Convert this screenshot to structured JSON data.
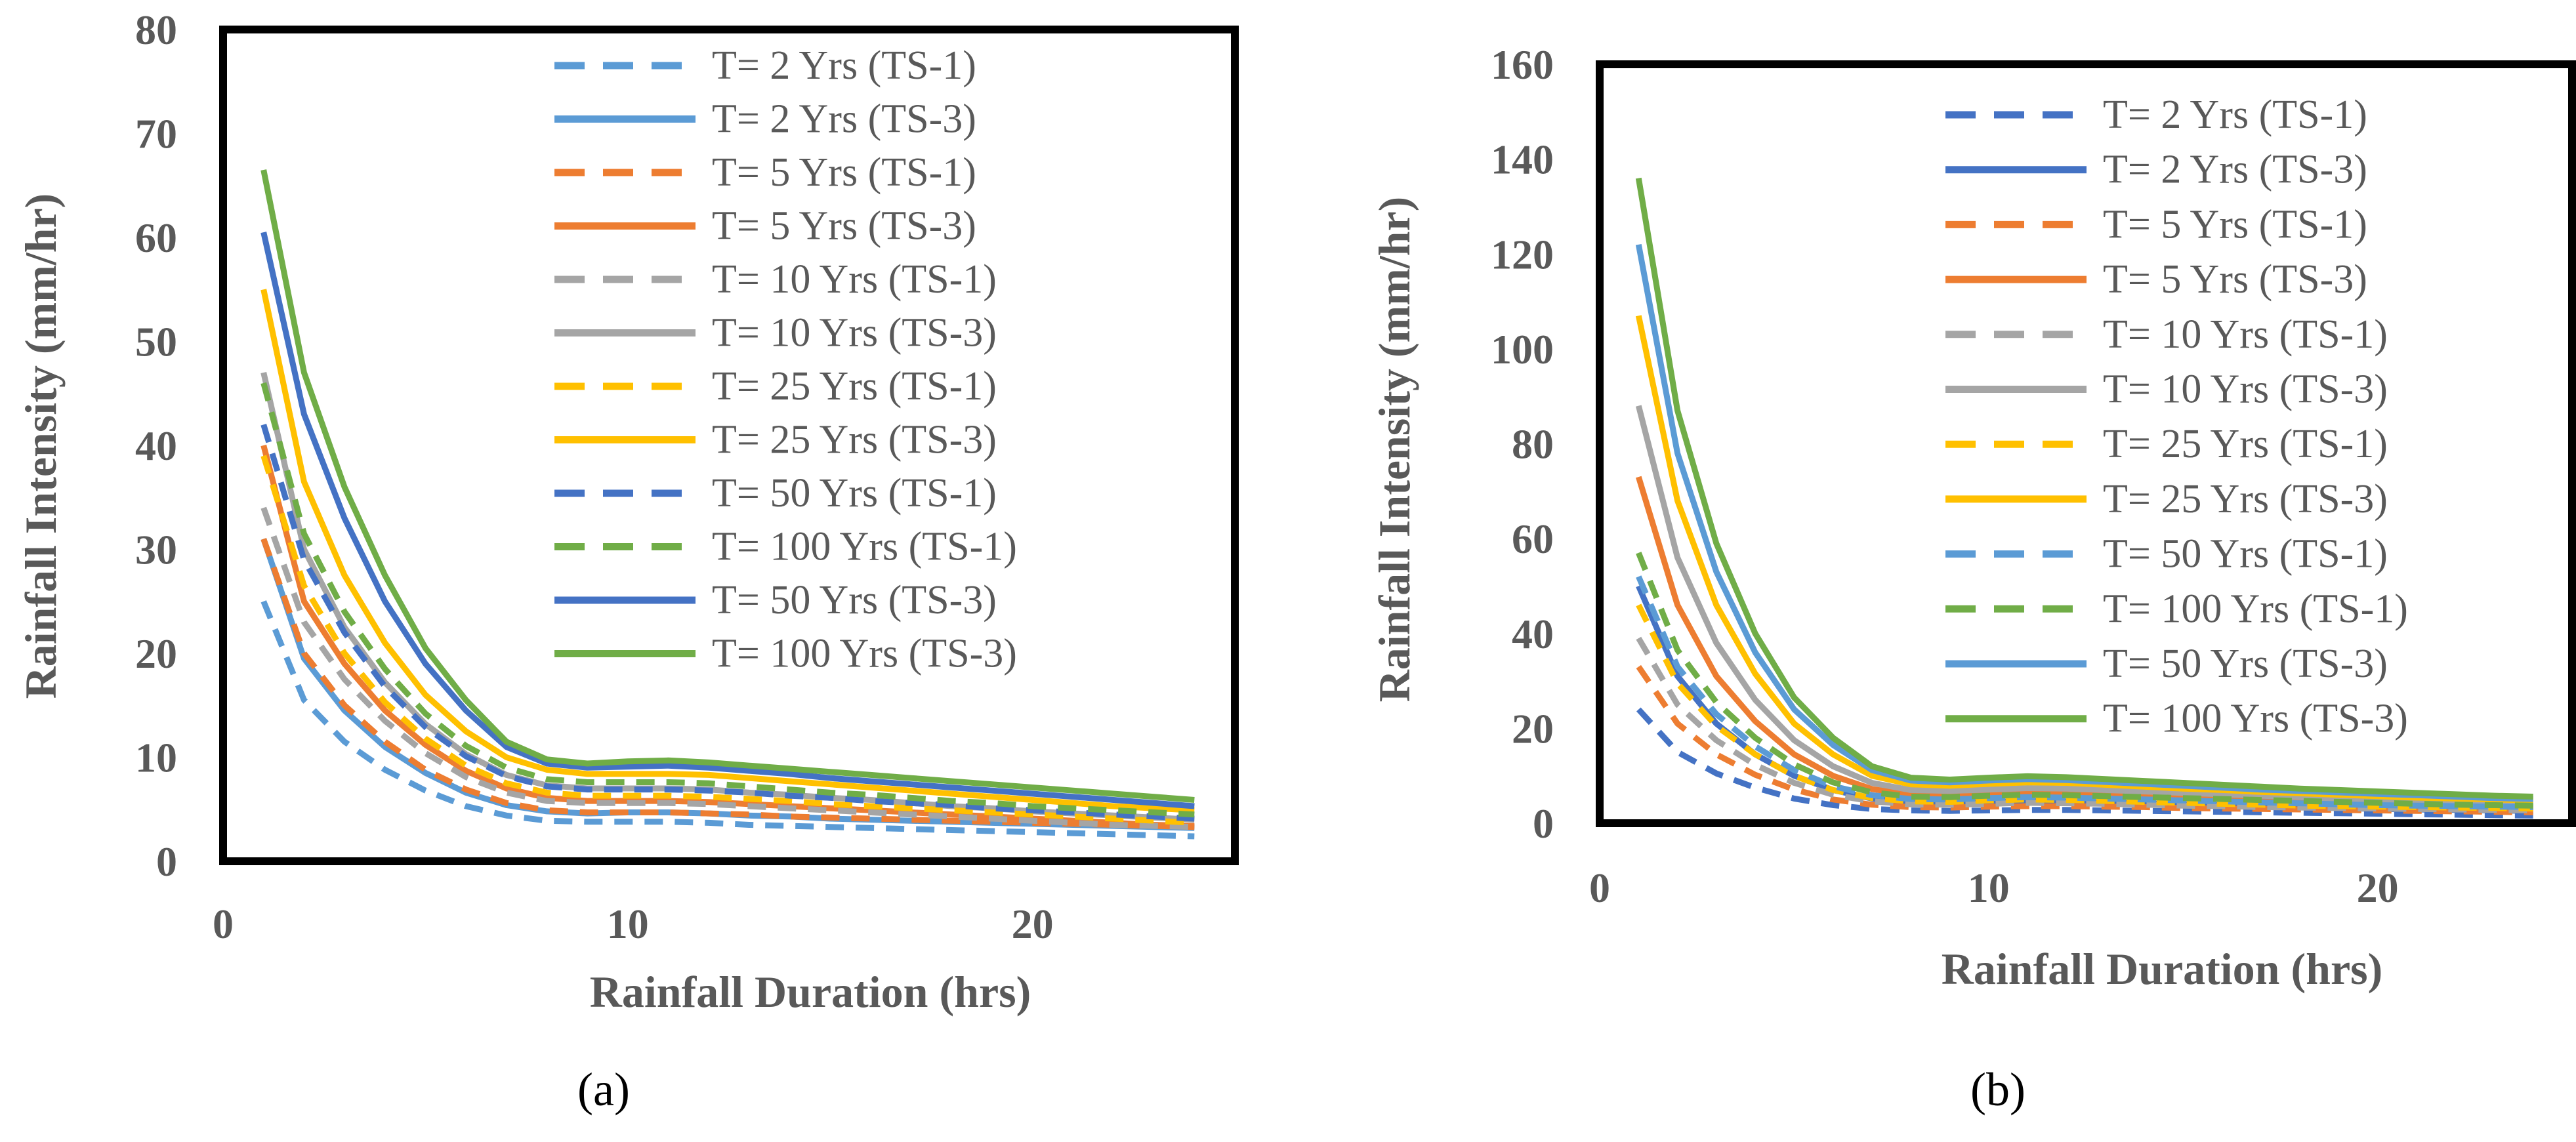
{
  "chart_data": [
    {
      "type": "line",
      "panel_label": "(a)",
      "xlabel": "Rainfall Duration (hrs)",
      "ylabel": "Rainfall Intensity (mm/hr)",
      "xlim": [
        0,
        25
      ],
      "ylim": [
        0,
        80
      ],
      "x_ticks": [
        0,
        10,
        20
      ],
      "y_ticks": [
        0,
        10,
        20,
        30,
        40,
        50,
        60,
        70,
        80
      ],
      "grid": false,
      "legend_position": "top-right",
      "x": [
        1,
        2,
        3,
        4,
        5,
        6,
        7,
        8,
        9,
        10,
        11,
        12,
        13,
        14,
        15,
        16,
        17,
        18,
        19,
        20,
        21,
        22,
        23,
        24
      ],
      "series": [
        {
          "name": "T= 2 Yrs (TS-1)",
          "style": "dashed",
          "color": "#5B9BD5",
          "values": [
            25,
            15.5,
            11.5,
            8.8,
            6.8,
            5.3,
            4.4,
            3.9,
            3.8,
            3.8,
            3.8,
            3.7,
            3.5,
            3.4,
            3.3,
            3.2,
            3.1,
            3.0,
            2.9,
            2.8,
            2.7,
            2.6,
            2.5,
            2.4
          ]
        },
        {
          "name": "T= 2 Yrs (TS-3)",
          "style": "solid",
          "color": "#5B9BD5",
          "values": [
            31,
            19.5,
            14.5,
            11,
            8.5,
            6.6,
            5.4,
            4.8,
            4.6,
            4.7,
            4.7,
            4.6,
            4.4,
            4.3,
            4.1,
            4.0,
            3.9,
            3.8,
            3.7,
            3.6,
            3.5,
            3.4,
            3.3,
            3.2
          ]
        },
        {
          "name": "T= 5 Yrs (TS-1)",
          "style": "dashed",
          "color": "#ED7D31",
          "values": [
            31,
            20,
            15,
            11.5,
            8.8,
            6.9,
            5.6,
            4.9,
            4.7,
            4.7,
            4.7,
            4.6,
            4.5,
            4.3,
            4.2,
            4.1,
            4.0,
            3.9,
            3.8,
            3.7,
            3.6,
            3.5,
            3.4,
            3.3
          ]
        },
        {
          "name": "T= 5 Yrs (TS-3)",
          "style": "solid",
          "color": "#ED7D31",
          "values": [
            40,
            25,
            19,
            14.5,
            11.2,
            8.7,
            7.0,
            6.1,
            5.8,
            5.8,
            5.8,
            5.7,
            5.5,
            5.3,
            5.1,
            4.9,
            4.7,
            4.5,
            4.3,
            4.1,
            3.9,
            3.7,
            3.5,
            3.4
          ]
        },
        {
          "name": "T= 10 Yrs (TS-1)",
          "style": "dashed",
          "color": "#A5A5A5",
          "values": [
            34,
            23,
            17.5,
            13.5,
            10.4,
            8.1,
            6.6,
            5.8,
            5.6,
            5.6,
            5.6,
            5.5,
            5.3,
            5.1,
            4.9,
            4.7,
            4.5,
            4.3,
            4.1,
            3.9,
            3.7,
            3.5,
            3.4,
            3.3
          ]
        },
        {
          "name": "T= 10 Yrs (TS-3)",
          "style": "solid",
          "color": "#A5A5A5",
          "values": [
            47,
            30,
            22.5,
            17.2,
            13.2,
            10.3,
            8.3,
            7.3,
            7.0,
            7.0,
            7.0,
            6.9,
            6.6,
            6.4,
            6.1,
            5.9,
            5.6,
            5.3,
            5.1,
            4.8,
            4.6,
            4.4,
            4.2,
            4.0
          ]
        },
        {
          "name": "T= 25 Yrs (TS-1)",
          "style": "dashed",
          "color": "#FFC000",
          "values": [
            39,
            26.5,
            20,
            15.3,
            11.8,
            9.2,
            7.5,
            6.6,
            6.3,
            6.3,
            6.3,
            6.2,
            6.0,
            5.8,
            5.5,
            5.3,
            5.1,
            4.9,
            4.7,
            4.5,
            4.3,
            4.1,
            3.9,
            3.7
          ]
        },
        {
          "name": "T= 25 Yrs (TS-3)",
          "style": "solid",
          "color": "#FFC000",
          "values": [
            55,
            36.5,
            27.5,
            21,
            16,
            12.5,
            10,
            8.8,
            8.4,
            8.4,
            8.4,
            8.3,
            8.0,
            7.7,
            7.4,
            7.1,
            6.8,
            6.5,
            6.2,
            5.9,
            5.6,
            5.3,
            5.1,
            4.9
          ]
        },
        {
          "name": "T= 50 Yrs (TS-1)",
          "style": "dashed",
          "color": "#4472C4",
          "values": [
            42,
            29,
            22,
            16.8,
            12.9,
            10.1,
            8.2,
            7.2,
            6.9,
            6.9,
            6.9,
            6.8,
            6.6,
            6.3,
            6.1,
            5.8,
            5.6,
            5.4,
            5.1,
            4.9,
            4.7,
            4.5,
            4.3,
            4.1
          ]
        },
        {
          "name": "T= 100 Yrs (TS-1)",
          "style": "dashed",
          "color": "#70AD47",
          "values": [
            46,
            31.5,
            24,
            18.5,
            14.2,
            11.1,
            9.0,
            7.9,
            7.6,
            7.6,
            7.6,
            7.5,
            7.2,
            6.9,
            6.6,
            6.4,
            6.1,
            5.8,
            5.6,
            5.3,
            5.1,
            4.9,
            4.7,
            4.5
          ]
        },
        {
          "name": "T= 50 Yrs (TS-3)",
          "style": "solid",
          "color": "#4472C4",
          "values": [
            60.5,
            43,
            33,
            25,
            19,
            14.5,
            11,
            9.4,
            9.0,
            9.1,
            9.2,
            9.0,
            8.7,
            8.4,
            8.0,
            7.7,
            7.4,
            7.1,
            6.8,
            6.5,
            6.2,
            5.9,
            5.6,
            5.3
          ]
        },
        {
          "name": "T= 100 Yrs (TS-3)",
          "style": "solid",
          "color": "#70AD47",
          "values": [
            66.5,
            47,
            36,
            27.5,
            20.5,
            15.5,
            11.5,
            9.8,
            9.4,
            9.6,
            9.7,
            9.5,
            9.2,
            8.9,
            8.6,
            8.3,
            8.0,
            7.7,
            7.4,
            7.1,
            6.8,
            6.5,
            6.2,
            5.9
          ]
        }
      ]
    },
    {
      "type": "line",
      "panel_label": "(b)",
      "xlabel": "Rainfall Duration (hrs)",
      "ylabel": "Rainfall Intensity (mm/hr)",
      "xlim": [
        0,
        25
      ],
      "ylim": [
        0,
        160
      ],
      "x_ticks": [
        0,
        10,
        20
      ],
      "y_ticks": [
        0,
        20,
        40,
        60,
        80,
        100,
        120,
        140,
        160
      ],
      "grid": false,
      "legend_position": "top-right",
      "x": [
        1,
        2,
        3,
        4,
        5,
        6,
        7,
        8,
        9,
        10,
        11,
        12,
        13,
        14,
        15,
        16,
        17,
        18,
        19,
        20,
        21,
        22,
        23,
        24
      ],
      "series": [
        {
          "name": "T= 2 Yrs (TS-1)",
          "style": "dashed",
          "color": "#4472C4",
          "values": [
            24,
            15,
            10.5,
            7.5,
            5.2,
            3.8,
            3.0,
            2.7,
            2.6,
            2.7,
            2.8,
            2.8,
            2.7,
            2.6,
            2.5,
            2.4,
            2.3,
            2.2,
            2.1,
            2.0,
            1.9,
            1.8,
            1.7,
            1.6
          ]
        },
        {
          "name": "T= 2 Yrs (TS-3)",
          "style": "solid",
          "color": "#4472C4",
          "values": [
            50,
            31,
            21,
            14.5,
            10,
            7,
            5.2,
            4.4,
            4.3,
            4.5,
            4.7,
            4.6,
            4.4,
            4.2,
            4.0,
            3.8,
            3.6,
            3.4,
            3.2,
            3.0,
            2.9,
            2.8,
            2.7,
            2.6
          ]
        },
        {
          "name": "T= 5 Yrs (TS-1)",
          "style": "dashed",
          "color": "#ED7D31",
          "values": [
            33,
            21,
            14.5,
            10.2,
            7.1,
            5.0,
            3.9,
            3.4,
            3.3,
            3.5,
            3.6,
            3.6,
            3.5,
            3.4,
            3.2,
            3.1,
            3.0,
            2.9,
            2.8,
            2.7,
            2.6,
            2.5,
            2.4,
            2.3
          ]
        },
        {
          "name": "T= 5 Yrs (TS-3)",
          "style": "solid",
          "color": "#ED7D31",
          "values": [
            73,
            46,
            31,
            21.5,
            14.5,
            10,
            7.2,
            6.0,
            5.8,
            6.1,
            6.4,
            6.3,
            6.0,
            5.7,
            5.4,
            5.1,
            4.8,
            4.6,
            4.4,
            4.2,
            4.0,
            3.8,
            3.6,
            3.5
          ]
        },
        {
          "name": "T= 10 Yrs (TS-1)",
          "style": "dashed",
          "color": "#A5A5A5",
          "values": [
            39,
            25,
            17.5,
            12.3,
            8.5,
            6.0,
            4.6,
            4.0,
            3.9,
            4.1,
            4.3,
            4.2,
            4.1,
            3.9,
            3.7,
            3.6,
            3.4,
            3.3,
            3.2,
            3.1,
            3.0,
            2.9,
            2.8,
            2.7
          ]
        },
        {
          "name": "T= 10 Yrs (TS-3)",
          "style": "solid",
          "color": "#A5A5A5",
          "values": [
            88,
            56,
            38,
            26,
            17.5,
            12,
            8.5,
            7.0,
            6.8,
            7.1,
            7.4,
            7.3,
            7.0,
            6.7,
            6.4,
            6.1,
            5.8,
            5.5,
            5.2,
            5.0,
            4.8,
            4.6,
            4.4,
            4.2
          ]
        },
        {
          "name": "T= 25 Yrs (TS-1)",
          "style": "dashed",
          "color": "#FFC000",
          "values": [
            46,
            29.5,
            20.5,
            14.5,
            10,
            7.0,
            5.3,
            4.6,
            4.5,
            4.8,
            5.0,
            4.9,
            4.7,
            4.5,
            4.3,
            4.1,
            3.9,
            3.7,
            3.6,
            3.5,
            3.4,
            3.3,
            3.2,
            3.1
          ]
        },
        {
          "name": "T= 25 Yrs (TS-3)",
          "style": "solid",
          "color": "#FFC000",
          "values": [
            107,
            68,
            46,
            31.5,
            21,
            14.5,
            10,
            8.2,
            7.9,
            8.3,
            8.6,
            8.5,
            8.1,
            7.7,
            7.3,
            7.0,
            6.6,
            6.3,
            6.0,
            5.7,
            5.4,
            5.2,
            5.0,
            4.8
          ]
        },
        {
          "name": "T= 50 Yrs (TS-1)",
          "style": "dashed",
          "color": "#5B9BD5",
          "values": [
            52,
            33,
            23,
            16.2,
            11.2,
            7.8,
            5.9,
            5.1,
            5.0,
            5.3,
            5.5,
            5.4,
            5.2,
            5.0,
            4.8,
            4.6,
            4.4,
            4.2,
            4.0,
            3.8,
            3.7,
            3.6,
            3.5,
            3.4
          ]
        },
        {
          "name": "T= 100 Yrs (TS-1)",
          "style": "dashed",
          "color": "#70AD47",
          "values": [
            57,
            36.5,
            25.5,
            18,
            12.4,
            8.6,
            6.5,
            5.6,
            5.5,
            5.8,
            6.0,
            5.9,
            5.7,
            5.5,
            5.3,
            5.1,
            4.9,
            4.7,
            4.5,
            4.3,
            4.1,
            3.9,
            3.8,
            3.7
          ]
        },
        {
          "name": "T= 50 Yrs (TS-3)",
          "style": "solid",
          "color": "#5B9BD5",
          "values": [
            122,
            78,
            53,
            36,
            24,
            16.5,
            11.2,
            9.0,
            8.6,
            9.0,
            9.3,
            9.1,
            8.7,
            8.3,
            7.9,
            7.5,
            7.1,
            6.8,
            6.5,
            6.2,
            5.9,
            5.6,
            5.3,
            5.1
          ]
        },
        {
          "name": "T= 100 Yrs (TS-3)",
          "style": "solid",
          "color": "#70AD47",
          "values": [
            136,
            87,
            59,
            40,
            26.5,
            18,
            12,
            9.6,
            9.2,
            9.6,
            9.9,
            9.7,
            9.3,
            8.9,
            8.5,
            8.1,
            7.7,
            7.3,
            7.0,
            6.7,
            6.4,
            6.1,
            5.8,
            5.6
          ]
        }
      ]
    }
  ]
}
